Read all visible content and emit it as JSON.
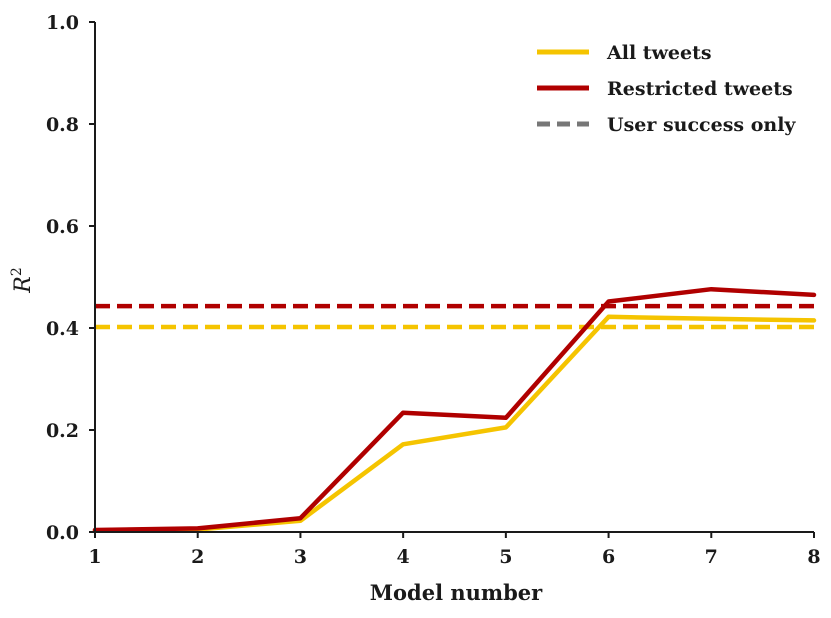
{
  "chart_data": {
    "type": "line",
    "xlabel": "Model number",
    "ylabel": "R",
    "ylabel_superscript": "2",
    "x": [
      1,
      2,
      3,
      4,
      5,
      6,
      7,
      8
    ],
    "xlim": [
      1,
      8
    ],
    "ylim": [
      0.0,
      1.0
    ],
    "y_ticks": [
      0.0,
      0.2,
      0.4,
      0.6,
      0.8,
      1.0
    ],
    "y_tick_labels": [
      "0.0",
      "0.2",
      "0.4",
      "0.6",
      "0.8",
      "1.0"
    ],
    "x_ticks": [
      1,
      2,
      3,
      4,
      5,
      6,
      7,
      8
    ],
    "x_tick_labels": [
      "1",
      "2",
      "3",
      "4",
      "5",
      "6",
      "7",
      "8"
    ],
    "grid": false,
    "legend_position": "top-right",
    "series": [
      {
        "name": "All tweets",
        "color": "#f5c400",
        "style": "solid",
        "values": [
          0.003,
          0.005,
          0.022,
          0.172,
          0.205,
          0.422,
          0.418,
          0.415
        ]
      },
      {
        "name": "Restricted tweets",
        "color": "#b00000",
        "style": "solid",
        "values": [
          0.004,
          0.007,
          0.027,
          0.234,
          0.224,
          0.452,
          0.476,
          0.465
        ]
      }
    ],
    "baselines": [
      {
        "label": "All tweets",
        "color": "#f5c400",
        "style": "dashed",
        "value": 0.402
      },
      {
        "label": "Restricted tweets",
        "color": "#b00000",
        "style": "dashed",
        "value": 0.443
      }
    ],
    "legend": [
      {
        "label": "All tweets",
        "color": "#f5c400",
        "style": "solid"
      },
      {
        "label": "Restricted tweets",
        "color": "#b00000",
        "style": "solid"
      },
      {
        "label": "User success only",
        "color": "#777777",
        "style": "dashed"
      }
    ],
    "axis_color": "#1a1a1a"
  }
}
